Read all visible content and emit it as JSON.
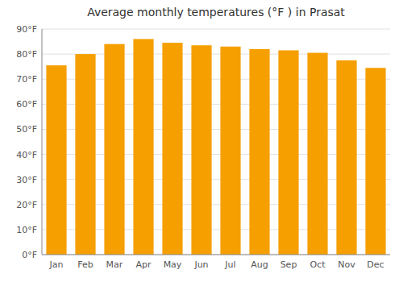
{
  "chart_data": {
    "type": "bar",
    "title": "Average monthly temperatures (°F ) in Prasat",
    "categories": [
      "Jan",
      "Feb",
      "Mar",
      "Apr",
      "May",
      "Jun",
      "Jul",
      "Aug",
      "Sep",
      "Oct",
      "Nov",
      "Dec"
    ],
    "values": [
      75.5,
      80.0,
      84.0,
      86.0,
      84.5,
      83.5,
      83.0,
      82.0,
      81.5,
      80.5,
      77.5,
      74.5
    ],
    "color": "#F5A000",
    "ylim": [
      0,
      90
    ],
    "yticks": [
      {
        "value": 0,
        "label": "0°F"
      },
      {
        "value": 10,
        "label": "10°F"
      },
      {
        "value": 20,
        "label": "20°F"
      },
      {
        "value": 30,
        "label": "30°F"
      },
      {
        "value": 40,
        "label": "40°F"
      },
      {
        "value": 50,
        "label": "50°F"
      },
      {
        "value": 60,
        "label": "60°F"
      },
      {
        "value": 70,
        "label": "70°F"
      },
      {
        "value": 80,
        "label": "80°F"
      },
      {
        "value": 90,
        "label": "90°F"
      }
    ],
    "grid": true
  }
}
